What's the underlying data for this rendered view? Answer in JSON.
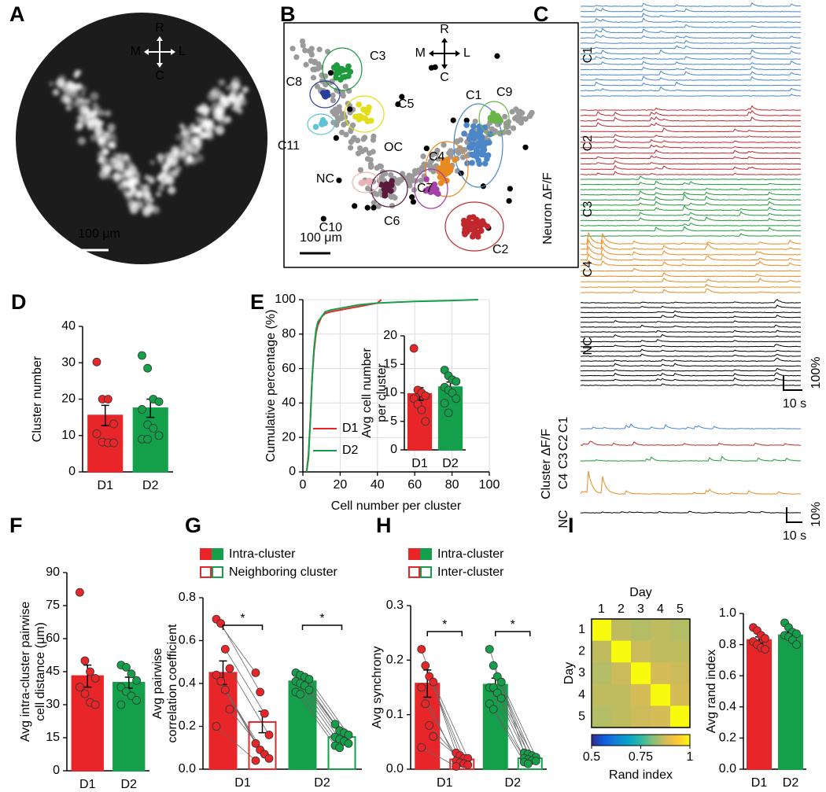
{
  "panel_labels": [
    "A",
    "B",
    "C",
    "D",
    "E",
    "F",
    "G",
    "H",
    "I"
  ],
  "image_a": {
    "orientation": {
      "up": "R",
      "left": "M",
      "right": "L",
      "down": "C"
    },
    "scale_bar": "100 μm"
  },
  "map_b": {
    "orientation": {
      "up": "R",
      "left": "M",
      "right": "L",
      "down": "C"
    },
    "scale_bar": "100 μm",
    "clusters": [
      {
        "label": "C1",
        "color": "#4a86c8"
      },
      {
        "label": "C2",
        "color": "#c0282d"
      },
      {
        "label": "C3",
        "color": "#1f9a3c"
      },
      {
        "label": "C4",
        "color": "#e98a1f"
      },
      {
        "label": "C5",
        "color": "#e2de1b"
      },
      {
        "label": "C6",
        "color": "#5a1a3c"
      },
      {
        "label": "C7",
        "color": "#a540a8"
      },
      {
        "label": "C8",
        "color": "#2b3f9c"
      },
      {
        "label": "C9",
        "color": "#6ab547"
      },
      {
        "label": "C10",
        "color": "#e8b4b4"
      },
      {
        "label": "C11",
        "color": "#5cc4d4"
      }
    ],
    "other_labels": [
      "OC",
      "NC"
    ]
  },
  "traces_c": {
    "ylabel": "Neuron ΔF/F",
    "groups": [
      {
        "label": "C1",
        "color": "#4a86c8"
      },
      {
        "label": "C2",
        "color": "#c0282d"
      },
      {
        "label": "C3",
        "color": "#1f9a3c"
      },
      {
        "label": "C4",
        "color": "#e98a1f"
      },
      {
        "label": "NC",
        "color": "#000000"
      }
    ],
    "time_bar": "10 s",
    "amp_bar": "100%",
    "cluster_ylabel": "Cluster ΔF/F",
    "cluster_time_bar": "10 s",
    "cluster_amp_bar": "10%"
  },
  "chart_data": [
    {
      "type": "bar",
      "ylabel": [
        "Cluster number"
      ],
      "categories": [
        "D1",
        "D2"
      ],
      "colors": [
        "#e8262a",
        "#14a04a"
      ],
      "series": [
        {
          "style": "filled",
          "values": [
            15.5,
            17.5
          ],
          "errors": [
            2.8,
            2.5
          ],
          "points": [
            [
              30.2,
              20,
              20,
              13.2,
              10.5,
              8.2,
              8,
              8
            ],
            [
              32,
              28.5,
              20,
              19.3,
              17.2,
              13,
              12,
              10,
              9,
              9
            ]
          ]
        }
      ],
      "ylim": [
        0,
        40
      ],
      "yticks": [
        0,
        10,
        20,
        30,
        40
      ]
    },
    {
      "type": "line",
      "xlabel": "Cell number per cluster",
      "ylabel": [
        "Cumulative percentage (%)"
      ],
      "grid": true,
      "legend": "center left",
      "xlim": [
        0,
        100
      ],
      "ylim": [
        0,
        100
      ],
      "xticks": [
        0,
        20,
        40,
        60,
        80,
        100
      ],
      "yticks": [
        0,
        20,
        40,
        60,
        80,
        100
      ],
      "series": [
        {
          "name": "D1",
          "color": "#e8262a",
          "x": [
            2,
            3,
            4,
            5,
            6,
            7,
            8,
            10,
            12,
            15,
            20,
            25,
            30,
            35,
            40,
            42
          ],
          "values": [
            0,
            10,
            30,
            55,
            70,
            80,
            85,
            90,
            92,
            93,
            94,
            95,
            96,
            97,
            98,
            100
          ]
        },
        {
          "name": "D2",
          "color": "#14a04a",
          "x": [
            2,
            3,
            4,
            5,
            6,
            7,
            8,
            10,
            12,
            15,
            20,
            25,
            30,
            40,
            50,
            60,
            70,
            80,
            94
          ],
          "values": [
            0,
            8,
            30,
            55,
            72,
            82,
            87,
            90,
            93,
            94,
            95,
            96,
            97,
            98,
            98.5,
            99,
            99.2,
            99.5,
            100
          ]
        }
      ]
    },
    {
      "type": "bar",
      "ylabel": [
        "Avg cell number",
        "per cluster"
      ],
      "categories": [
        "D1",
        "D2"
      ],
      "colors": [
        "#e8262a",
        "#14a04a"
      ],
      "series": [
        {
          "style": "filled",
          "values": [
            9.8,
            11
          ],
          "errors": [
            1.1,
            0.9
          ],
          "points": [
            [
              17.8,
              10.5,
              10,
              9.5,
              9,
              8,
              7,
              5
            ],
            [
              14,
              13,
              12.3,
              12,
              11,
              10.5,
              10,
              9,
              8.2,
              6.5
            ]
          ]
        }
      ],
      "ylim": [
        0,
        20
      ],
      "yticks": [
        0,
        5,
        10,
        15,
        20
      ]
    },
    {
      "type": "bar",
      "ylabel": [
        "Avg intra-cluster pairwise",
        "cell distance (μm)"
      ],
      "categories": [
        "D1",
        "D2"
      ],
      "colors": [
        "#e8262a",
        "#14a04a"
      ],
      "series": [
        {
          "style": "filled",
          "values": [
            43,
            40
          ],
          "errors": [
            5,
            2.5
          ],
          "points": [
            [
              81,
              50,
              45,
              42,
              38,
              35,
              31,
              30
            ],
            [
              48,
              47,
              44,
              41,
              38,
              36,
              34,
              32,
              30
            ]
          ]
        }
      ],
      "ylim": [
        0,
        90
      ],
      "yticks": [
        0,
        15,
        30,
        45,
        60,
        75,
        90
      ]
    },
    {
      "type": "bar",
      "ylabel": [
        "Avg pairwise",
        "correlation coefficient"
      ],
      "categories": [
        "D1",
        "D2"
      ],
      "colors": [
        "#e8262a",
        "#14a04a"
      ],
      "paired": true,
      "annotations": [
        "*",
        "*"
      ],
      "series": [
        {
          "name": "Intra-cluster",
          "style": "filled",
          "values": [
            0.45,
            0.41
          ],
          "errors": [
            0.055,
            0.02
          ],
          "points": [
            [
              0.7,
              0.68,
              0.56,
              0.47,
              0.44,
              0.41,
              0.37,
              0.28,
              0.2
            ],
            [
              0.45,
              0.44,
              0.43,
              0.42,
              0.41,
              0.4,
              0.39,
              0.37,
              0.36,
              0.35
            ]
          ]
        },
        {
          "name": "Neighboring cluster",
          "style": "open",
          "values": [
            0.22,
            0.15
          ],
          "errors": [
            0.05,
            0.015
          ],
          "points": [
            [
              0.45,
              0.36,
              0.26,
              0.16,
              0.12,
              0.09,
              0.07,
              0.05,
              0.04
            ],
            [
              0.21,
              0.18,
              0.17,
              0.16,
              0.15,
              0.14,
              0.13,
              0.12,
              0.11,
              0.1
            ]
          ]
        }
      ],
      "ylim": [
        0,
        0.8
      ],
      "yticks": [
        {
          "value": 0,
          "label": "0.0"
        },
        0.2,
        0.4,
        0.6,
        0.8
      ]
    },
    {
      "type": "bar",
      "ylabel": [
        "Avg synchrony"
      ],
      "categories": [
        "D1",
        "D2"
      ],
      "colors": [
        "#e8262a",
        "#14a04a"
      ],
      "paired": true,
      "annotations": [
        "*",
        "*"
      ],
      "series": [
        {
          "name": "Intra-cluster",
          "style": "filled",
          "values": [
            0.157,
            0.155
          ],
          "errors": [
            0.025,
            0.012
          ],
          "points": [
            [
              0.22,
              0.19,
              0.17,
              0.16,
              0.15,
              0.12,
              0.08,
              0.06,
              0.04
            ],
            [
              0.22,
              0.19,
              0.17,
              0.16,
              0.15,
              0.15,
              0.14,
              0.13,
              0.12,
              0.11
            ]
          ]
        },
        {
          "name": "Inter-cluster",
          "style": "open",
          "values": [
            0.018,
            0.02
          ],
          "errors": [
            0.004,
            0.003
          ],
          "points": [
            [
              0.03,
              0.025,
              0.02,
              0.02,
              0.015,
              0.012,
              0.01,
              0.008,
              0.005
            ],
            [
              0.03,
              0.028,
              0.025,
              0.022,
              0.02,
              0.018,
              0.016,
              0.015,
              0.013,
              0.01
            ]
          ]
        }
      ],
      "ylim": [
        0,
        0.3
      ],
      "yticks": [
        {
          "value": 0,
          "label": "0.0"
        },
        0.1,
        0.2,
        0.3
      ]
    },
    {
      "type": "heatmap",
      "title": "Day",
      "ylabel": "Day",
      "categories": [
        "1",
        "2",
        "3",
        "4",
        "5"
      ],
      "matrix": [
        [
          1,
          0.86,
          0.85,
          0.86,
          0.85
        ],
        [
          0.86,
          1,
          0.87,
          0.86,
          0.86
        ],
        [
          0.85,
          0.87,
          1,
          0.88,
          0.87
        ],
        [
          0.86,
          0.86,
          0.88,
          1,
          0.88
        ],
        [
          0.85,
          0.86,
          0.87,
          0.88,
          1
        ]
      ],
      "colorbar": {
        "label": "Rand index",
        "lim": [
          0.5,
          1
        ],
        "ticks": [
          0.5,
          0.75,
          1
        ]
      },
      "colormap": [
        "#352a87",
        "#0f5cdd",
        "#1481d6",
        "#06a4ca",
        "#2eb7a4",
        "#87bf77",
        "#d1bb59",
        "#fec832",
        "#f9fb0e"
      ]
    },
    {
      "type": "bar",
      "ylabel": [
        "Avg rand index"
      ],
      "categories": [
        "D1",
        "D2"
      ],
      "colors": [
        "#e8262a",
        "#14a04a"
      ],
      "series": [
        {
          "style": "filled",
          "values": [
            0.83,
            0.86
          ],
          "errors": [
            0.02,
            0.02
          ],
          "points": [
            [
              0.91,
              0.89,
              0.86,
              0.84,
              0.82,
              0.8,
              0.78,
              0.77
            ],
            [
              0.94,
              0.91,
              0.88,
              0.87,
              0.86,
              0.85,
              0.83,
              0.8
            ]
          ]
        }
      ],
      "ylim": [
        0,
        1
      ],
      "yticks": [
        {
          "value": 0,
          "label": "0.0"
        },
        0.2,
        0.4,
        0.6,
        0.8,
        {
          "value": 1,
          "label": "1.0"
        }
      ]
    }
  ]
}
